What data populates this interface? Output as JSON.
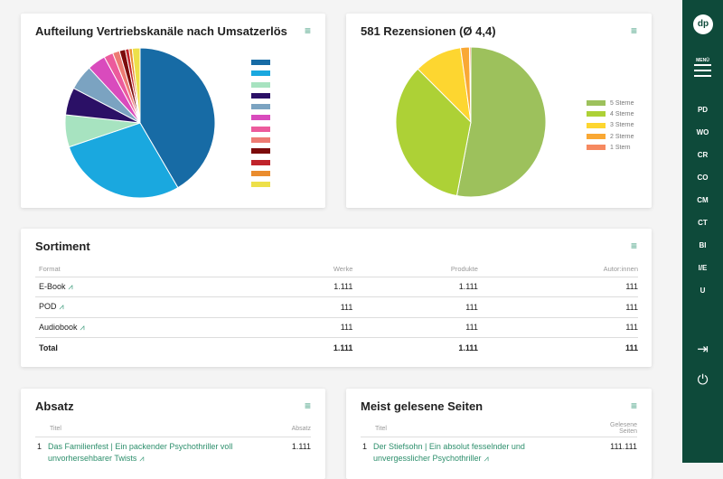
{
  "channels_card": {
    "title": "Aufteilung Vertriebskanäle nach Umsatzerlös",
    "menu_icon": "hamburger-icon",
    "chart_data": {
      "type": "pie",
      "title": "Aufteilung Vertriebskanäle nach Umsatzerlös",
      "legend": "right",
      "values": [
        42,
        28.5,
        7,
        6,
        5.5,
        4,
        2,
        1.5,
        1.3,
        0.8,
        0.7,
        1.7
      ],
      "colors": [
        "#176ba5",
        "#1aa8df",
        "#a7e3c0",
        "#2b1066",
        "#7ba3c1",
        "#d94bbd",
        "#ec5b9c",
        "#ed7b73",
        "#7c0b0b",
        "#c0232b",
        "#ea8c2e",
        "#ede04a"
      ]
    }
  },
  "reviews_card": {
    "title": "581 Rezensionen (Ø 4,4)",
    "chart_data": {
      "type": "pie",
      "legend": "right",
      "categories": [
        "5 Sterne",
        "4 Sterne",
        "3 Sterne",
        "2 Sterne",
        "1 Stern"
      ],
      "values": [
        53,
        34.5,
        10.3,
        1.9,
        0.3
      ],
      "colors": [
        "#9dc15c",
        "#add136",
        "#fdd630",
        "#f9a834",
        "#f68960"
      ]
    }
  },
  "sortiment": {
    "title": "Sortiment",
    "headers": [
      "Format",
      "Werke",
      "Produkte",
      "Autor:innen"
    ],
    "rows": [
      {
        "format": "E-Book",
        "werke": "1.111",
        "produkte": "1.111",
        "autoren": "111"
      },
      {
        "format": "POD",
        "werke": "111",
        "produkte": "111",
        "autoren": "111"
      },
      {
        "format": "Audiobook",
        "werke": "111",
        "produkte": "111",
        "autoren": "111"
      },
      {
        "format": "Total",
        "werke": "1.111",
        "produkte": "1.111",
        "autoren": "111"
      }
    ]
  },
  "absatz": {
    "title": "Absatz",
    "headers": [
      "Titel",
      "Absatz"
    ],
    "rows": [
      {
        "rank": "1",
        "title": "Das Familienfest | Ein packender Psychothriller voll unvorhersehbarer Twists",
        "value": "1.111"
      }
    ]
  },
  "gelesen": {
    "title": "Meist gelesene Seiten",
    "headers": [
      "Titel",
      "Gelesene Seiten"
    ],
    "rows": [
      {
        "rank": "1",
        "title": "Der Stiefsohn | Ein absolut fesselnder und unvergesslicher Psychothriller",
        "value": "111.111"
      }
    ]
  },
  "sidebar": {
    "logo": "dp",
    "menu_label": "MENÜ",
    "items": [
      "PD",
      "WO",
      "CR",
      "CO",
      "CM",
      "CT",
      "BI",
      "I/E",
      "U"
    ],
    "login_icon": "login-icon",
    "power_icon": "power-icon"
  },
  "trend_glyph": "⩘"
}
